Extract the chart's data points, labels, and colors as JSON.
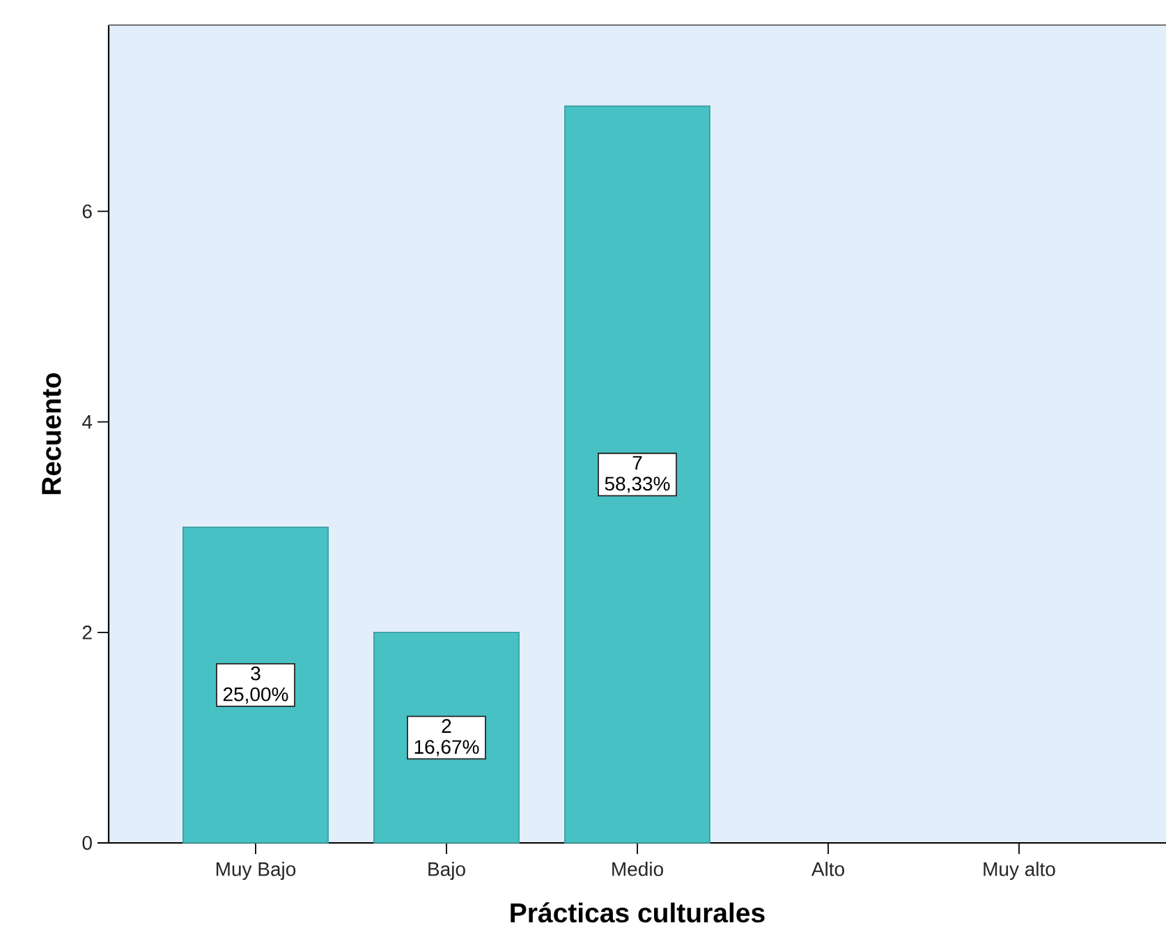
{
  "chart_data": {
    "type": "bar",
    "xlabel": "Prácticas culturales",
    "ylabel": "Recuento",
    "categories": [
      "Muy Bajo",
      "Bajo",
      "Medio",
      "Alto",
      "Muy alto"
    ],
    "values": [
      3,
      2,
      7,
      null,
      null
    ],
    "value_labels": [
      "3 25,00%",
      "2 16,67%",
      "7 58,33%",
      null,
      null
    ],
    "color": "#48c1c5",
    "ylim": [
      0,
      7.77
    ],
    "yticks": [
      0,
      2,
      4,
      6
    ]
  }
}
